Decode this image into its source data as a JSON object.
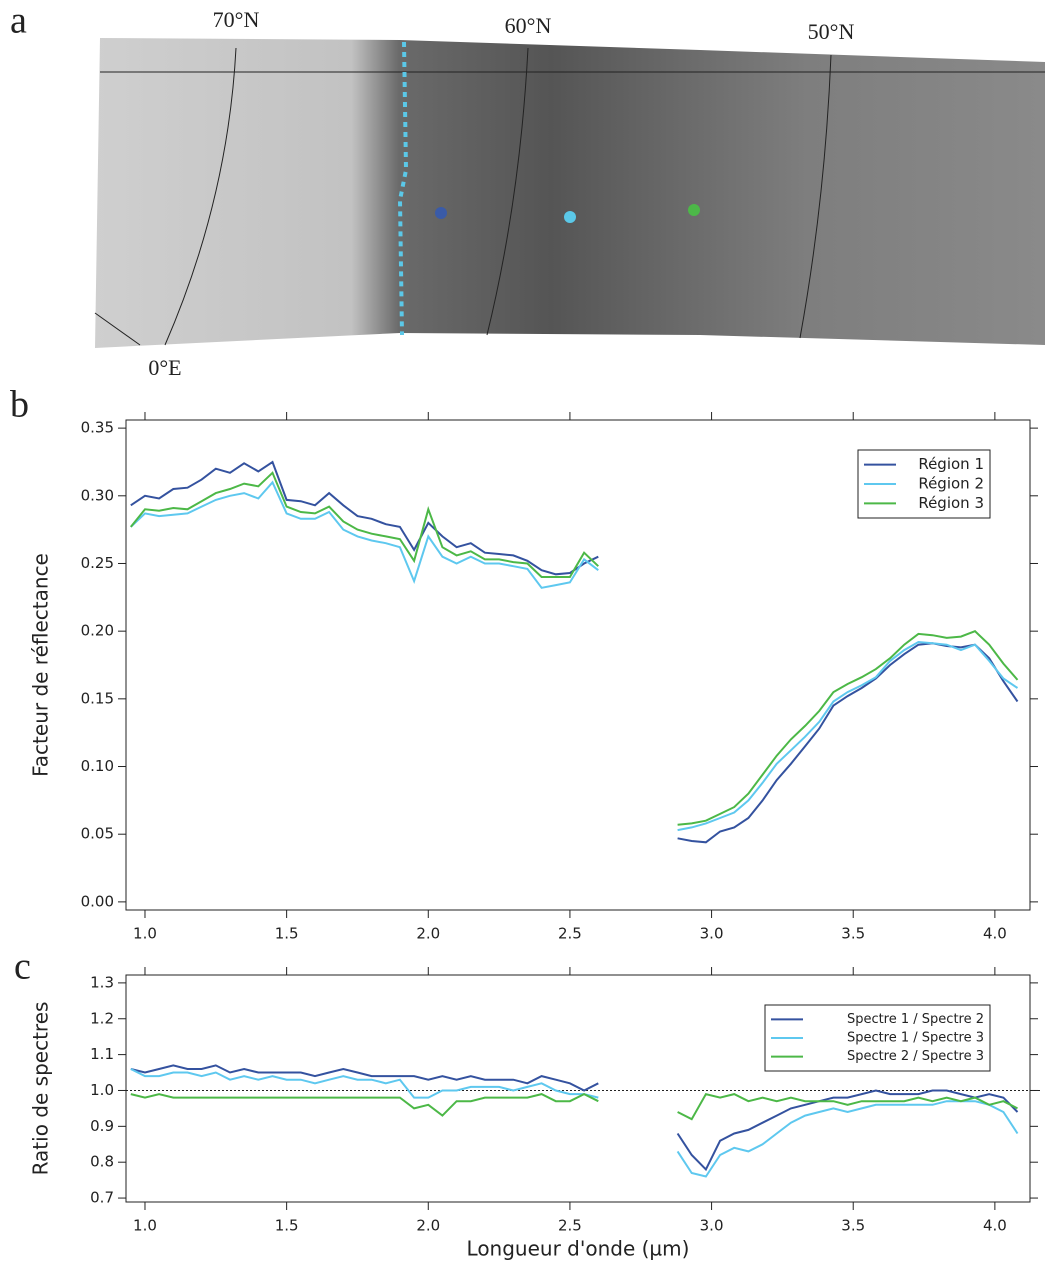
{
  "figure": {
    "panels": [
      "a",
      "b",
      "c"
    ],
    "map_labels": [
      "70°N",
      "60°N",
      "50°N",
      "0°E"
    ]
  },
  "chart_data": [
    {
      "type": "line",
      "ylabel": "Facteur de réflectance",
      "legend": "top-right",
      "grid": false,
      "xlim": [
        0.933,
        4.124
      ],
      "ylim": [
        -0.006,
        0.356
      ],
      "xticks": [
        {
          "value": 1,
          "label": "1.0"
        },
        1.5,
        {
          "value": 2,
          "label": "2.0"
        },
        2.5,
        {
          "value": 3,
          "label": "3.0"
        },
        3.5,
        {
          "value": 4,
          "label": "4.0"
        }
      ],
      "yticks": [
        {
          "value": 0,
          "label": "0.00"
        },
        0.05,
        {
          "value": 0.1,
          "label": "0.10"
        },
        0.15,
        {
          "value": 0.2,
          "label": "0.20"
        },
        0.25,
        {
          "value": 0.3,
          "label": "0.30"
        },
        0.35
      ],
      "x": [
        0.95,
        1.0,
        1.05,
        1.1,
        1.15,
        1.2,
        1.25,
        1.3,
        1.35,
        1.4,
        1.45,
        1.5,
        1.55,
        1.6,
        1.65,
        1.7,
        1.75,
        1.8,
        1.85,
        1.9,
        1.95,
        2.0,
        2.05,
        2.1,
        2.15,
        2.2,
        2.25,
        2.3,
        2.35,
        2.4,
        2.45,
        2.5,
        2.55,
        2.6,
        2.75,
        2.88,
        2.93,
        2.98,
        3.03,
        3.08,
        3.13,
        3.18,
        3.23,
        3.28,
        3.33,
        3.38,
        3.43,
        3.48,
        3.53,
        3.58,
        3.63,
        3.68,
        3.73,
        3.78,
        3.83,
        3.88,
        3.93,
        3.98,
        4.03,
        4.08
      ],
      "series": [
        {
          "name": "Région 1",
          "color": "#34529f",
          "values": [
            0.293,
            0.3,
            0.298,
            0.305,
            0.306,
            0.312,
            0.32,
            0.317,
            0.324,
            0.318,
            0.325,
            0.297,
            0.296,
            0.293,
            0.302,
            0.293,
            0.285,
            0.283,
            0.279,
            0.277,
            0.26,
            0.28,
            0.27,
            0.262,
            0.265,
            0.258,
            0.257,
            0.256,
            0.252,
            0.245,
            0.242,
            0.243,
            0.25,
            0.255,
            null,
            0.047,
            0.045,
            0.044,
            0.052,
            0.055,
            0.062,
            0.075,
            0.09,
            0.102,
            0.115,
            0.128,
            0.145,
            0.152,
            0.158,
            0.165,
            0.175,
            0.183,
            0.19,
            0.191,
            0.189,
            0.188,
            0.19,
            0.18,
            0.163,
            0.148
          ]
        },
        {
          "name": "Région 2",
          "color": "#5ec8ef",
          "values": [
            0.277,
            0.287,
            0.285,
            0.286,
            0.287,
            0.292,
            0.297,
            0.3,
            0.302,
            0.298,
            0.31,
            0.287,
            0.283,
            0.283,
            0.288,
            0.275,
            0.27,
            0.267,
            0.265,
            0.262,
            0.237,
            0.27,
            0.255,
            0.25,
            0.255,
            0.25,
            0.25,
            0.248,
            0.246,
            0.232,
            0.234,
            0.236,
            0.253,
            0.245,
            null,
            0.053,
            0.055,
            0.058,
            0.062,
            0.066,
            0.075,
            0.088,
            0.102,
            0.112,
            0.122,
            0.133,
            0.148,
            0.155,
            0.16,
            0.166,
            0.178,
            0.186,
            0.192,
            0.191,
            0.19,
            0.186,
            0.19,
            0.178,
            0.165,
            0.158
          ]
        },
        {
          "name": "Région 3",
          "color": "#4cb847",
          "values": [
            0.277,
            0.29,
            0.289,
            0.291,
            0.29,
            0.296,
            0.302,
            0.305,
            0.309,
            0.307,
            0.317,
            0.292,
            0.288,
            0.287,
            0.292,
            0.281,
            0.275,
            0.272,
            0.27,
            0.268,
            0.252,
            0.29,
            0.262,
            0.256,
            0.259,
            0.253,
            0.253,
            0.251,
            0.25,
            0.24,
            0.24,
            0.24,
            0.258,
            0.248,
            null,
            0.057,
            0.058,
            0.06,
            0.065,
            0.07,
            0.08,
            0.094,
            0.108,
            0.12,
            0.13,
            0.141,
            0.155,
            0.161,
            0.166,
            0.172,
            0.18,
            0.19,
            0.198,
            0.197,
            0.195,
            0.196,
            0.2,
            0.19,
            0.176,
            0.164
          ]
        }
      ]
    },
    {
      "type": "line",
      "ylabel": "Ratio de spectres",
      "xlabel": "Longueur d'onde (µm)",
      "legend": "top-right",
      "grid": false,
      "reference_line": 1,
      "xlim": [
        0.933,
        4.124
      ],
      "ylim": [
        0.689,
        1.322
      ],
      "xticks": [
        {
          "value": 1,
          "label": "1.0"
        },
        1.5,
        {
          "value": 2,
          "label": "2.0"
        },
        2.5,
        {
          "value": 3,
          "label": "3.0"
        },
        3.5,
        {
          "value": 4,
          "label": "4.0"
        }
      ],
      "yticks": [
        0.7,
        0.8,
        0.9,
        {
          "value": 1,
          "label": "1.0"
        },
        1.1,
        1.2,
        1.3
      ],
      "x": [
        0.95,
        1.0,
        1.05,
        1.1,
        1.15,
        1.2,
        1.25,
        1.3,
        1.35,
        1.4,
        1.45,
        1.5,
        1.55,
        1.6,
        1.65,
        1.7,
        1.75,
        1.8,
        1.85,
        1.9,
        1.95,
        2.0,
        2.05,
        2.1,
        2.15,
        2.2,
        2.25,
        2.3,
        2.35,
        2.4,
        2.45,
        2.5,
        2.55,
        2.6,
        2.75,
        2.88,
        2.93,
        2.98,
        3.03,
        3.08,
        3.13,
        3.18,
        3.23,
        3.28,
        3.33,
        3.38,
        3.43,
        3.48,
        3.53,
        3.58,
        3.63,
        3.68,
        3.73,
        3.78,
        3.83,
        3.88,
        3.93,
        3.98,
        4.03,
        4.08
      ],
      "series": [
        {
          "name": "Spectre 1 / Spectre 2",
          "color": "#34529f",
          "values": [
            1.06,
            1.05,
            1.06,
            1.07,
            1.06,
            1.06,
            1.07,
            1.05,
            1.06,
            1.05,
            1.05,
            1.05,
            1.05,
            1.04,
            1.05,
            1.06,
            1.05,
            1.04,
            1.04,
            1.04,
            1.04,
            1.03,
            1.04,
            1.03,
            1.04,
            1.03,
            1.03,
            1.03,
            1.02,
            1.04,
            1.03,
            1.02,
            1.0,
            1.02,
            null,
            0.88,
            0.82,
            0.78,
            0.86,
            0.88,
            0.89,
            0.91,
            0.93,
            0.95,
            0.96,
            0.97,
            0.98,
            0.98,
            0.99,
            1.0,
            0.99,
            0.99,
            0.99,
            1.0,
            1.0,
            0.99,
            0.98,
            0.99,
            0.98,
            0.94
          ]
        },
        {
          "name": "Spectre 1 / Spectre 3",
          "color": "#5ec8ef",
          "values": [
            1.06,
            1.04,
            1.04,
            1.05,
            1.05,
            1.04,
            1.05,
            1.03,
            1.04,
            1.03,
            1.04,
            1.03,
            1.03,
            1.02,
            1.03,
            1.04,
            1.03,
            1.03,
            1.02,
            1.03,
            0.98,
            0.98,
            1.0,
            1.0,
            1.01,
            1.01,
            1.01,
            1.0,
            1.01,
            1.02,
            1.0,
            0.99,
            0.99,
            0.98,
            null,
            0.83,
            0.77,
            0.76,
            0.82,
            0.84,
            0.83,
            0.85,
            0.88,
            0.91,
            0.93,
            0.94,
            0.95,
            0.94,
            0.95,
            0.96,
            0.96,
            0.96,
            0.96,
            0.96,
            0.97,
            0.97,
            0.97,
            0.96,
            0.94,
            0.88
          ]
        },
        {
          "name": "Spectre 2 / Spectre 3",
          "color": "#4cb847",
          "values": [
            0.99,
            0.98,
            0.99,
            0.98,
            0.98,
            0.98,
            0.98,
            0.98,
            0.98,
            0.98,
            0.98,
            0.98,
            0.98,
            0.98,
            0.98,
            0.98,
            0.98,
            0.98,
            0.98,
            0.98,
            0.95,
            0.96,
            0.93,
            0.97,
            0.97,
            0.98,
            0.98,
            0.98,
            0.98,
            0.99,
            0.97,
            0.97,
            0.99,
            0.97,
            null,
            0.94,
            0.92,
            0.99,
            0.98,
            0.99,
            0.97,
            0.98,
            0.97,
            0.98,
            0.97,
            0.97,
            0.97,
            0.96,
            0.97,
            0.97,
            0.97,
            0.97,
            0.98,
            0.97,
            0.98,
            0.97,
            0.98,
            0.96,
            0.97,
            0.95
          ]
        }
      ]
    }
  ]
}
